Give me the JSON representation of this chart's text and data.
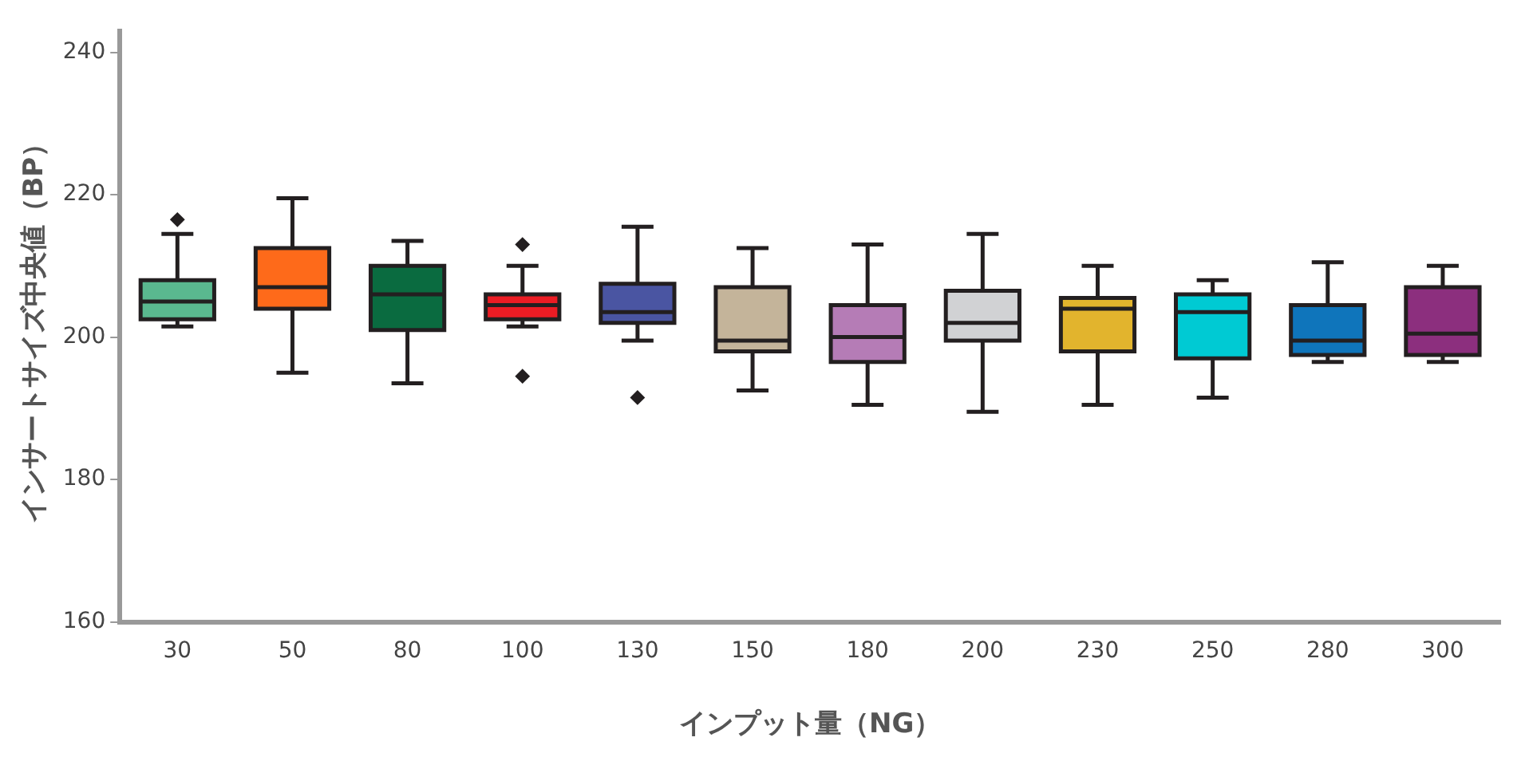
{
  "chart_data": {
    "type": "box",
    "xlabel": "インプット量（NG）",
    "ylabel": "インサートサイズ中央値（BP）",
    "categories": [
      "30",
      "50",
      "80",
      "100",
      "130",
      "150",
      "180",
      "200",
      "230",
      "250",
      "280",
      "300"
    ],
    "colors": [
      "#5ab88f",
      "#fe6a1a",
      "#0a6b40",
      "#ec1c24",
      "#4a55a2",
      "#c4b49a",
      "#b57cb6",
      "#d1d2d4",
      "#e2b42d",
      "#00cad3",
      "#0f75bb",
      "#8c2f7e"
    ],
    "boxes": [
      {
        "low": 201.5,
        "q1": 202.5,
        "median": 205,
        "q3": 208,
        "high": 214.5,
        "outliers": [
          216.5
        ]
      },
      {
        "low": 195,
        "q1": 204,
        "median": 207,
        "q3": 212.5,
        "high": 219.5
      },
      {
        "low": 193.5,
        "q1": 201,
        "median": 206,
        "q3": 210,
        "high": 213.5
      },
      {
        "low": 201.5,
        "q1": 202.5,
        "median": 204.5,
        "q3": 206,
        "high": 210,
        "outliers": [
          213,
          194.5
        ]
      },
      {
        "low": 199.5,
        "q1": 202,
        "median": 203.5,
        "q3": 207.5,
        "high": 215.5,
        "outliers": [
          191.5
        ]
      },
      {
        "low": 192.5,
        "q1": 198,
        "median": 199.5,
        "q3": 207,
        "high": 212.5
      },
      {
        "low": 190.5,
        "q1": 196.5,
        "median": 200,
        "q3": 204.5,
        "high": 213
      },
      {
        "low": 189.5,
        "q1": 199.5,
        "median": 202,
        "q3": 206.5,
        "high": 214.5
      },
      {
        "low": 190.5,
        "q1": 198,
        "median": 204,
        "q3": 205.5,
        "high": 210
      },
      {
        "low": 191.5,
        "q1": 197,
        "median": 203.5,
        "q3": 206,
        "high": 208
      },
      {
        "low": 196.5,
        "q1": 197.5,
        "median": 199.5,
        "q3": 204.5,
        "high": 210.5
      },
      {
        "low": 196.5,
        "q1": 197.5,
        "median": 200.5,
        "q3": 207,
        "high": 210
      }
    ],
    "ylim": [
      160,
      243
    ],
    "yticks": [
      160,
      180,
      200,
      220,
      240
    ]
  }
}
